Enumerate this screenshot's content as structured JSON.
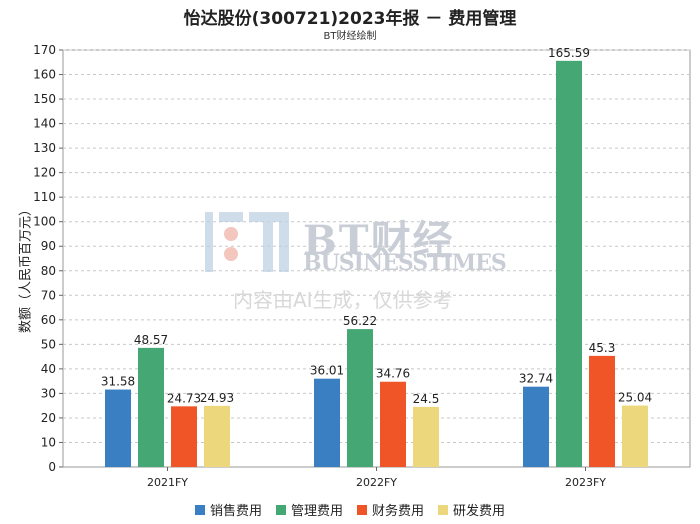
{
  "title": "怡达股份(300721)2023年报 － 费用管理",
  "subtitle": "BT财经绘制",
  "watermark": {
    "brand_cn": "BT财经",
    "brand_en": "BUSINESSTIMES",
    "note": "内容由AI生成，仅供参考"
  },
  "chart_data": {
    "type": "bar",
    "title": "怡达股份(300721)2023年报 － 费用管理",
    "ylabel": "数额（人民币百万元）",
    "xlabel": "",
    "categories": [
      "2021FY",
      "2022FY",
      "2023FY"
    ],
    "ylim": [
      0,
      170
    ],
    "yticks": [
      0,
      10,
      20,
      30,
      40,
      50,
      60,
      70,
      80,
      90,
      100,
      110,
      120,
      130,
      140,
      150,
      160,
      170
    ],
    "grid": true,
    "legend_position": "bottom",
    "series": [
      {
        "name": "销售费用",
        "color": "#3a7fc1",
        "values": [
          31.58,
          36.01,
          32.74
        ],
        "labels": [
          "31.58",
          "36.01",
          "32.74"
        ]
      },
      {
        "name": "管理费用",
        "color": "#45a874",
        "values": [
          48.57,
          56.22,
          165.59
        ],
        "labels": [
          "48.57",
          "56.22",
          "165.59"
        ]
      },
      {
        "name": "财务费用",
        "color": "#ef5527",
        "values": [
          24.73,
          34.76,
          45.3
        ],
        "labels": [
          "24.73",
          "34.76",
          "45.3"
        ]
      },
      {
        "name": "研发费用",
        "color": "#ecd77c",
        "values": [
          24.93,
          24.5,
          25.04
        ],
        "labels": [
          "24.93",
          "24.5",
          "25.04"
        ]
      }
    ]
  }
}
